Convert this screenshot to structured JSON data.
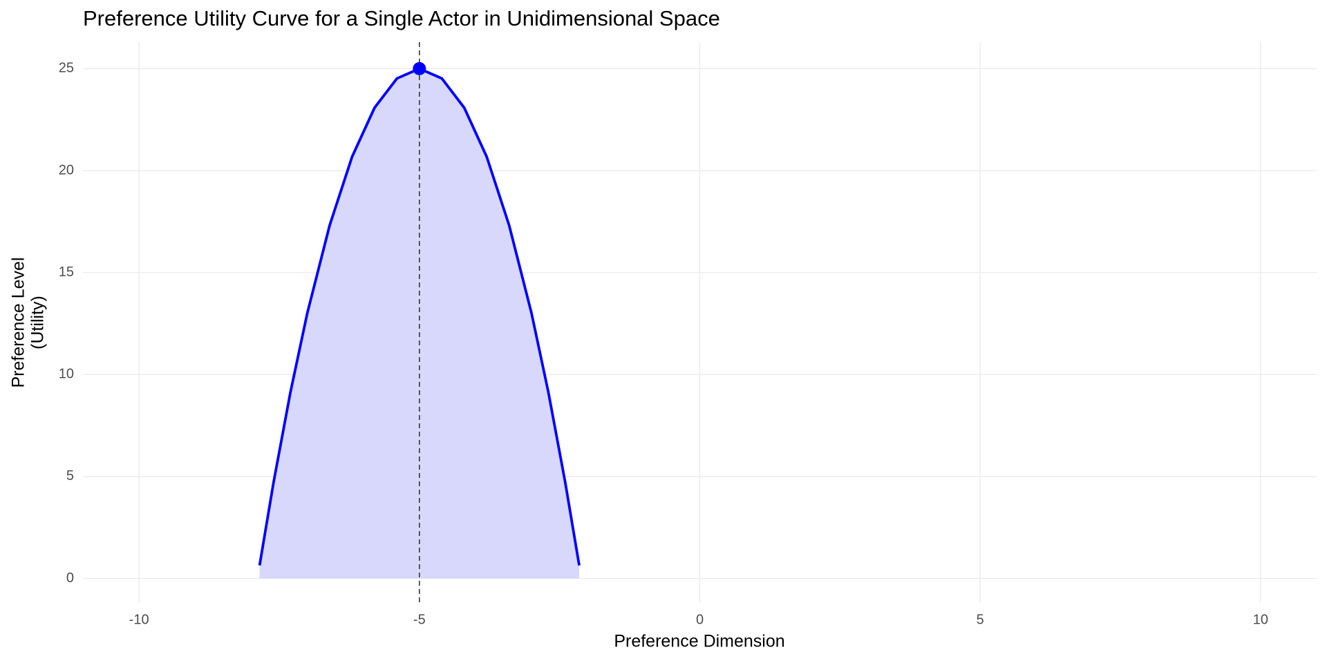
{
  "chart_data": {
    "type": "area",
    "title": "Preference Utility Curve for a Single Actor in Unidimensional Space",
    "xlabel": "Preference Dimension",
    "ylabel": [
      "Preference Level",
      "(Utility)"
    ],
    "x": [
      -7.85,
      -7.6,
      -7.3,
      -7.0,
      -6.6,
      -6.2,
      -5.8,
      -5.4,
      -5.0,
      -4.6,
      -4.2,
      -3.8,
      -3.4,
      -3.0,
      -2.7,
      -2.4,
      -2.15
    ],
    "series": [
      {
        "color": "#0000ff",
        "fill": "#d8d8fc",
        "values": [
          0.64,
          4.72,
          9.13,
          13,
          17.32,
          20.68,
          23.08,
          24.52,
          25,
          24.52,
          23.08,
          20.68,
          17.32,
          13,
          9.13,
          4.72,
          0.64
        ]
      }
    ],
    "peak": {
      "x": -5,
      "y": 25,
      "color": "#0000ff"
    },
    "vline": {
      "x": -5,
      "color": "#333333"
    },
    "xlim": [
      -11,
      11
    ],
    "ylim": [
      -1.2,
      26.3
    ],
    "xticks": [
      -10,
      -5,
      0,
      5,
      10
    ],
    "yticks": [
      0,
      5,
      10,
      15,
      20,
      25
    ],
    "grid": true
  }
}
